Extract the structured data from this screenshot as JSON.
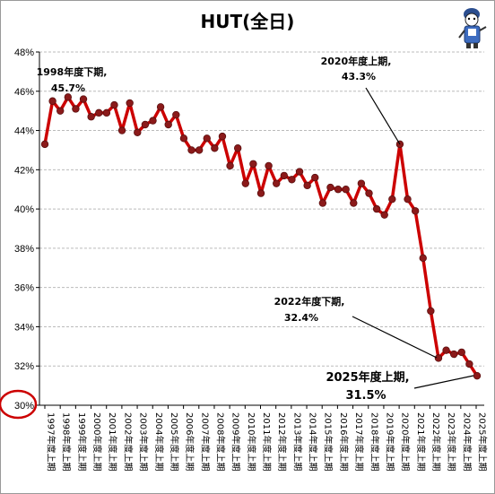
{
  "chart_data": {
    "type": "line",
    "title": "HUT(全日)",
    "ylim": [
      30,
      48
    ],
    "y_tick_labels": [
      "30%",
      "32%",
      "34%",
      "36%",
      "38%",
      "40%",
      "42%",
      "44%",
      "46%",
      "48%"
    ],
    "highlighted_tick": "30%",
    "grid": "horizontal dashed",
    "x_tick_labels": [
      "1997年度上期",
      "1998年度上期",
      "1999年度上期",
      "2000年度上期",
      "2001年度上期",
      "2002年度上期",
      "2003年度上期",
      "2004年度上期",
      "2005年度上期",
      "2006年度上期",
      "2007年度上期",
      "2008年度上期",
      "2009年度上期",
      "2010年度上期",
      "2011年度上期",
      "2012年度上期",
      "2013年度上期",
      "2014年度上期",
      "2015年度上期",
      "2016年度上期",
      "2017年度上期",
      "2018年度上期",
      "2019年度上期",
      "2020年度上期",
      "2021年度上期",
      "2022年度上期",
      "2023年度上期",
      "2024年度上期",
      "2025年度上期"
    ],
    "series": [
      {
        "line_color": "#cc0000",
        "marker_color": "#8b1a1a",
        "values": [
          43.3,
          45.5,
          45.0,
          45.7,
          45.1,
          45.6,
          44.7,
          44.9,
          44.9,
          45.3,
          44.0,
          45.4,
          43.9,
          44.3,
          44.5,
          45.2,
          44.3,
          44.8,
          43.6,
          43.0,
          43.0,
          43.6,
          43.1,
          43.7,
          42.2,
          43.1,
          41.3,
          42.3,
          40.8,
          42.2,
          41.3,
          41.7,
          41.5,
          41.9,
          41.2,
          41.6,
          40.3,
          41.1,
          41.0,
          41.0,
          40.3,
          41.3,
          40.8,
          40.0,
          39.7,
          40.5,
          43.3,
          40.5,
          39.9,
          37.5,
          34.8,
          32.4,
          32.8,
          32.6,
          32.7,
          32.1,
          31.5
        ]
      }
    ],
    "annotations": [
      {
        "line1": "1998年度下期,",
        "line2": "45.7%"
      },
      {
        "line1": "2020年度上期,",
        "line2": "43.3%"
      },
      {
        "line1": "2022年度下期,",
        "line2": "32.4%"
      },
      {
        "line1": "2025年度上期,",
        "line2": "31.5%"
      }
    ]
  }
}
